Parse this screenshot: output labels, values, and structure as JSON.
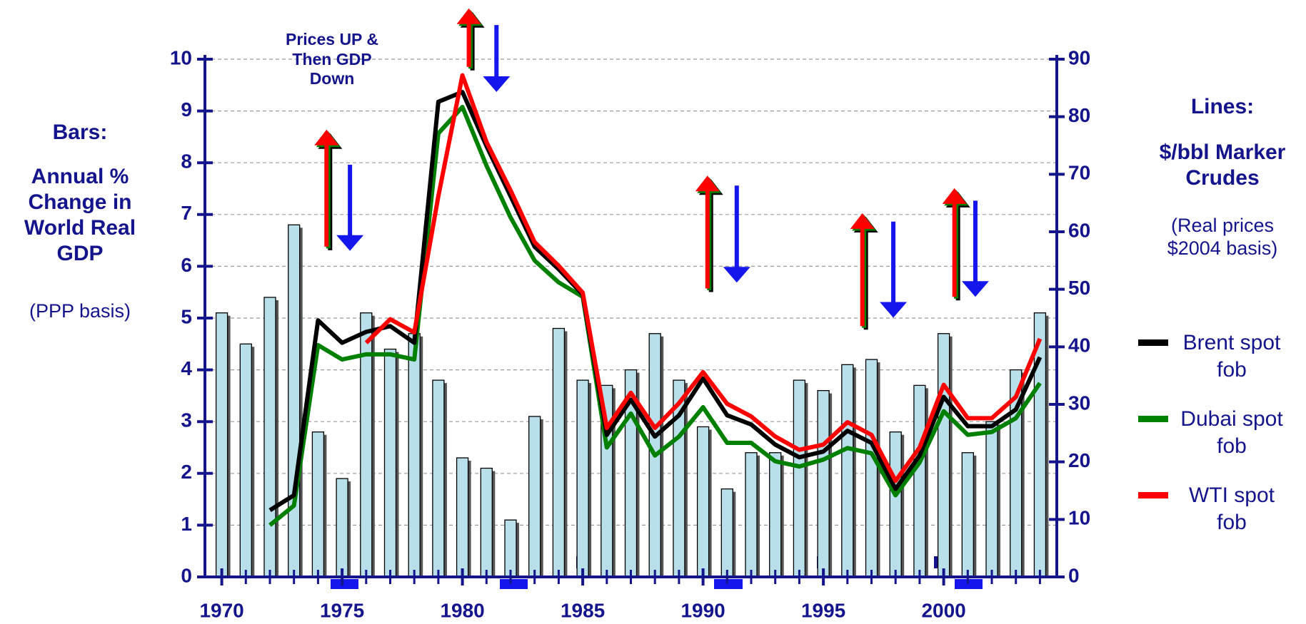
{
  "chart_data": {
    "type": "bar",
    "x": [
      1970,
      1971,
      1972,
      1973,
      1974,
      1975,
      1976,
      1977,
      1978,
      1979,
      1980,
      1981,
      1982,
      1983,
      1984,
      1985,
      1986,
      1987,
      1988,
      1989,
      1990,
      1991,
      1992,
      1993,
      1994,
      1995,
      1996,
      1997,
      1998,
      1999,
      2000,
      2001,
      2002,
      2003,
      2004
    ],
    "xlim": [
      1969.3,
      2004.7
    ],
    "xticks": [
      1970,
      1975,
      1980,
      1985,
      1990,
      1995,
      2000
    ],
    "ylim": [
      0,
      10
    ],
    "yticks": [
      0,
      1,
      2,
      3,
      4,
      5,
      6,
      7,
      8,
      9,
      10
    ],
    "y2lim": [
      0,
      90
    ],
    "y2ticks": [
      0,
      10,
      20,
      30,
      40,
      50,
      60,
      70,
      80,
      90
    ],
    "grid": true,
    "left_label": {
      "title": "Bars:",
      "text": "Annual % Change in World Real GDP",
      "note": "(PPP basis)"
    },
    "right_label": {
      "title": "Lines:",
      "text": "$/bbl Marker Crudes",
      "note": "(Real prices $2004 basis)"
    },
    "annotation": "Prices UP & Then GDP Down",
    "series": [
      {
        "type": "bar",
        "axis": "y",
        "color": "#b9e0ea",
        "values": [
          5.1,
          4.5,
          5.4,
          6.8,
          2.8,
          1.9,
          5.1,
          4.4,
          4.7,
          3.8,
          2.3,
          2.1,
          1.1,
          3.1,
          4.8,
          3.8,
          3.7,
          4.0,
          4.7,
          3.8,
          2.9,
          1.7,
          2.4,
          2.4,
          3.8,
          3.6,
          4.1,
          4.2,
          2.8,
          3.7,
          4.7,
          2.4,
          3.0,
          4.0,
          5.1
        ]
      },
      {
        "type": "line",
        "axis": "y2",
        "name": "Brent spot fob",
        "color": "#000000",
        "values": [
          null,
          null,
          11.6,
          14.2,
          44.6,
          40.7,
          42.6,
          43.6,
          40.7,
          82.6,
          84.3,
          74.9,
          66.2,
          57.4,
          53.5,
          49.1,
          24.7,
          30.8,
          24.4,
          28.1,
          34.5,
          28.1,
          26.5,
          23.0,
          20.8,
          21.8,
          25.4,
          23.3,
          15.3,
          21.1,
          31.3,
          26.2,
          26.2,
          29.1,
          38.2
        ]
      },
      {
        "type": "line",
        "axis": "y2",
        "name": "Dubai spot fob",
        "color": "#008000",
        "values": [
          null,
          null,
          9.0,
          12.4,
          40.3,
          37.8,
          38.7,
          38.7,
          37.8,
          77.1,
          81.7,
          71.5,
          62.5,
          55.0,
          51.2,
          48.7,
          22.5,
          28.4,
          21.1,
          24.4,
          29.5,
          23.3,
          23.3,
          20.1,
          19.2,
          20.4,
          22.4,
          21.5,
          14.2,
          19.9,
          28.8,
          24.7,
          25.2,
          27.6,
          33.7
        ]
      },
      {
        "type": "line",
        "axis": "y2",
        "name": "WTI spot fob",
        "color": "#ff0000",
        "values": [
          null,
          null,
          null,
          null,
          null,
          null,
          40.7,
          44.8,
          42.5,
          66.2,
          87.2,
          75.6,
          67.2,
          58.2,
          54.1,
          49.4,
          25.9,
          32.0,
          25.9,
          30.2,
          35.6,
          30.1,
          27.9,
          24.4,
          22.1,
          23.0,
          26.9,
          24.7,
          16.7,
          22.5,
          33.4,
          27.6,
          27.6,
          31.3,
          41.4
        ]
      }
    ]
  }
}
